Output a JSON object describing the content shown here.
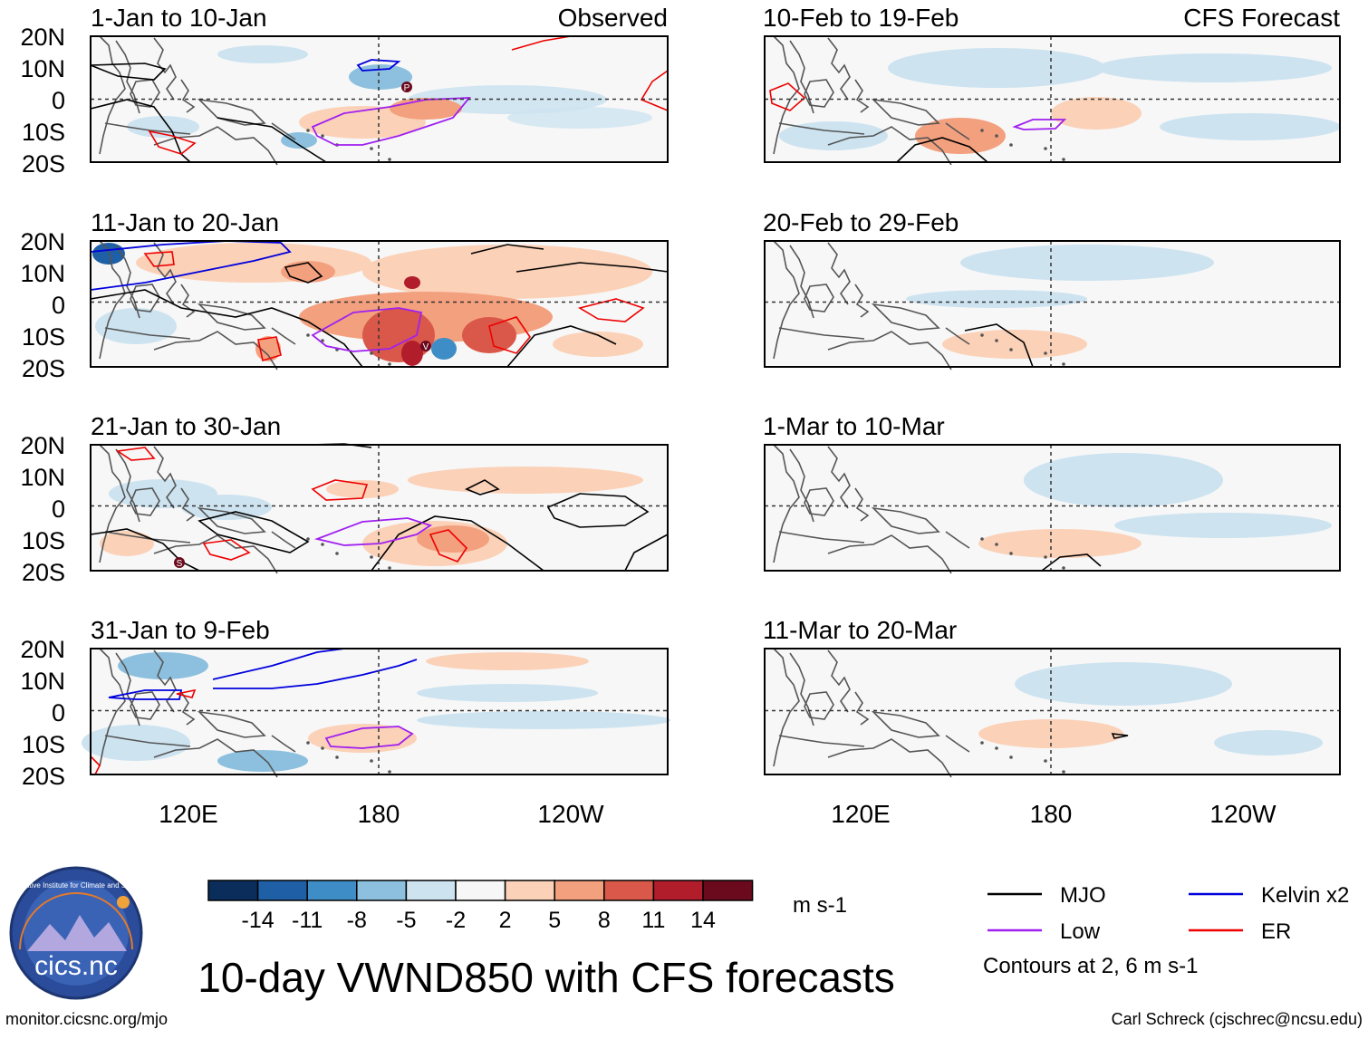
{
  "title": "10-day VWND850 with CFS forecasts",
  "units": "m s-1",
  "website": "monitor.cicsnc.org/mjo",
  "credit": "Carl Schreck (cjschrec@ncsu.edu)",
  "logo": {
    "text": "cics.nc",
    "arc_text": "Cooperative Institute for Climate and Satellites"
  },
  "contour_note": "Contours at 2, 6 m s-1",
  "panel_tags": {
    "observed": "Observed",
    "forecast": "CFS Forecast"
  },
  "lat_labels": [
    "20N",
    "10N",
    "0",
    "10S",
    "20S"
  ],
  "lon_labels": [
    "120E",
    "180",
    "120W"
  ],
  "panels": {
    "obs": [
      {
        "title": "1-Jan to 10-Jan"
      },
      {
        "title": "11-Jan to 20-Jan"
      },
      {
        "title": "21-Jan to 30-Jan"
      },
      {
        "title": "31-Jan to 9-Feb"
      }
    ],
    "fc": [
      {
        "title": "10-Feb to 19-Feb"
      },
      {
        "title": "20-Feb to 29-Feb"
      },
      {
        "title": "1-Mar to 10-Mar"
      },
      {
        "title": "11-Mar to 20-Mar"
      }
    ]
  },
  "colorbar": {
    "ticks": [
      "-14",
      "-11",
      "-8",
      "-5",
      "-2",
      "2",
      "5",
      "8",
      "11",
      "14"
    ],
    "colors": [
      "#0b2d5c",
      "#1f5fa5",
      "#3f8dc6",
      "#8cc0de",
      "#cde3f0",
      "#f7f7f7",
      "#fbd1b8",
      "#f3a07e",
      "#d9584a",
      "#b11d2b",
      "#6b0a1d"
    ]
  },
  "legend": [
    {
      "label": "MJO",
      "color": "#000000"
    },
    {
      "label": "Kelvin x2",
      "color": "#0000dd"
    },
    {
      "label": "Low",
      "color": "#a020f0"
    },
    {
      "label": "ER",
      "color": "#ee0000"
    }
  ],
  "panel_markers": {
    "p": "P",
    "v": "V",
    "s": "S"
  }
}
